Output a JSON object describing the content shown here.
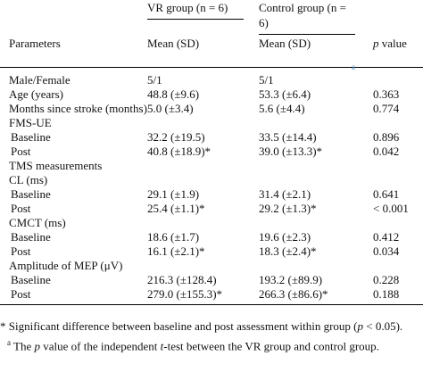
{
  "table": {
    "header": {
      "group1": "VR group (n = 6)",
      "group2": "Control group (n = 6)",
      "parameters": "Parameters",
      "mean1": "Mean (SD)",
      "mean2": "Mean (SD)",
      "p_italic": "p",
      "p_rest": " value",
      "p_note": "a"
    },
    "rows": [
      [
        "Male/Female",
        "5/1",
        "5/1"
      ],
      [
        "Age (years)",
        "48.8 (±9.6)",
        "53.3 (±6.4)",
        "0.363"
      ],
      [
        "Months since stroke (months)",
        "5.0 (±3.4)",
        "5.6 (±4.4)",
        "0.774"
      ],
      [
        "FMS-UE"
      ],
      [
        "Baseline",
        "32.2 (±19.5)",
        "33.5 (±14.4)",
        "0.896"
      ],
      [
        "Post",
        "40.8 (±18.9)*",
        "39.0 (±13.3)*",
        "0.042"
      ],
      [
        "TMS measurements"
      ],
      [
        "CL (ms)"
      ],
      [
        "Baseline",
        "29.1 (±1.9)",
        "31.4 (±2.1)",
        "0.641"
      ],
      [
        "Post",
        "25.4 (±1.1)*",
        "29.2 (±1.3)*",
        "< 0.001"
      ],
      [
        "CMCT (ms)"
      ],
      [
        "Baseline",
        "18.6 (±1.7)",
        "19.6 (±2.3)",
        "0.412"
      ],
      [
        "Post",
        "16.1 (±2.1)*",
        "18.3 (±2.4)*",
        "0.034"
      ],
      [
        "Amplitude of MEP (μV)"
      ],
      [
        "Baseline",
        "216.3 (±128.4)",
        "193.2 (±89.9)",
        "0.228"
      ],
      [
        "Post",
        "279.0 (±155.3)*",
        "266.3 (±86.6)*",
        "0.188"
      ]
    ],
    "footnotes": [
      [
        "* Significant difference between baseline and post assessment within group (",
        "p",
        " < 0.05)."
      ],
      [
        "a",
        " The ",
        "p",
        " value of the independent ",
        "t",
        "-test between the VR group and control group."
      ]
    ]
  }
}
